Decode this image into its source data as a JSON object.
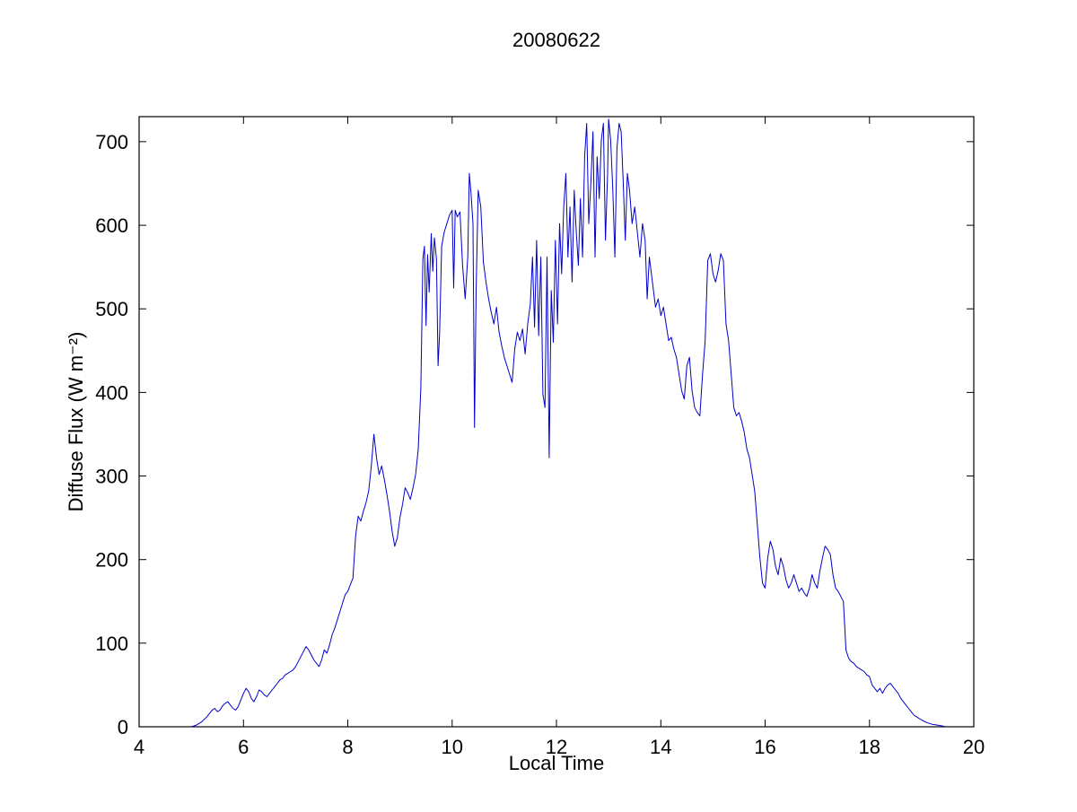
{
  "figure": {
    "background_color": "#ffffff",
    "frame_color": "#000000"
  },
  "chart_data": {
    "type": "line",
    "title": "20080622",
    "xlabel": "Local Time",
    "ylabel": "Diffuse Flux (W m⁻²)",
    "xlim": [
      4,
      20
    ],
    "ylim": [
      0,
      730
    ],
    "x_ticks": [
      4,
      6,
      8,
      10,
      12,
      14,
      16,
      18,
      20
    ],
    "y_ticks": [
      0,
      100,
      200,
      300,
      400,
      500,
      600,
      700
    ],
    "grid": false,
    "legend": "none",
    "line_color": "#0000CD",
    "line_width": 1,
    "points": [
      [
        5.0,
        0
      ],
      [
        5.05,
        1
      ],
      [
        5.1,
        2
      ],
      [
        5.2,
        6
      ],
      [
        5.3,
        12
      ],
      [
        5.35,
        16
      ],
      [
        5.4,
        20
      ],
      [
        5.45,
        22
      ],
      [
        5.5,
        18
      ],
      [
        5.55,
        20
      ],
      [
        5.6,
        25
      ],
      [
        5.65,
        28
      ],
      [
        5.7,
        30
      ],
      [
        5.75,
        26
      ],
      [
        5.8,
        22
      ],
      [
        5.85,
        20
      ],
      [
        5.9,
        24
      ],
      [
        5.95,
        32
      ],
      [
        6.0,
        40
      ],
      [
        6.05,
        46
      ],
      [
        6.1,
        42
      ],
      [
        6.15,
        34
      ],
      [
        6.2,
        30
      ],
      [
        6.25,
        36
      ],
      [
        6.3,
        44
      ],
      [
        6.35,
        42
      ],
      [
        6.4,
        38
      ],
      [
        6.45,
        36
      ],
      [
        6.5,
        40
      ],
      [
        6.55,
        44
      ],
      [
        6.6,
        48
      ],
      [
        6.65,
        52
      ],
      [
        6.7,
        56
      ],
      [
        6.75,
        58
      ],
      [
        6.8,
        62
      ],
      [
        6.85,
        64
      ],
      [
        6.9,
        66
      ],
      [
        6.95,
        68
      ],
      [
        7.0,
        72
      ],
      [
        7.05,
        78
      ],
      [
        7.1,
        84
      ],
      [
        7.15,
        90
      ],
      [
        7.2,
        96
      ],
      [
        7.25,
        92
      ],
      [
        7.3,
        86
      ],
      [
        7.35,
        80
      ],
      [
        7.4,
        76
      ],
      [
        7.45,
        72
      ],
      [
        7.5,
        80
      ],
      [
        7.55,
        92
      ],
      [
        7.6,
        88
      ],
      [
        7.65,
        98
      ],
      [
        7.7,
        110
      ],
      [
        7.75,
        118
      ],
      [
        7.8,
        128
      ],
      [
        7.85,
        138
      ],
      [
        7.9,
        148
      ],
      [
        7.95,
        158
      ],
      [
        8.0,
        162
      ],
      [
        8.05,
        170
      ],
      [
        8.1,
        178
      ],
      [
        8.15,
        228
      ],
      [
        8.2,
        252
      ],
      [
        8.25,
        246
      ],
      [
        8.3,
        258
      ],
      [
        8.35,
        268
      ],
      [
        8.4,
        282
      ],
      [
        8.45,
        312
      ],
      [
        8.5,
        350
      ],
      [
        8.55,
        322
      ],
      [
        8.6,
        302
      ],
      [
        8.65,
        312
      ],
      [
        8.7,
        296
      ],
      [
        8.75,
        278
      ],
      [
        8.8,
        258
      ],
      [
        8.85,
        234
      ],
      [
        8.9,
        216
      ],
      [
        8.95,
        226
      ],
      [
        9.0,
        250
      ],
      [
        9.05,
        266
      ],
      [
        9.1,
        286
      ],
      [
        9.15,
        280
      ],
      [
        9.2,
        272
      ],
      [
        9.25,
        286
      ],
      [
        9.3,
        302
      ],
      [
        9.35,
        332
      ],
      [
        9.4,
        405
      ],
      [
        9.44,
        560
      ],
      [
        9.47,
        575
      ],
      [
        9.5,
        480
      ],
      [
        9.53,
        565
      ],
      [
        9.56,
        520
      ],
      [
        9.6,
        590
      ],
      [
        9.63,
        545
      ],
      [
        9.66,
        585
      ],
      [
        9.7,
        560
      ],
      [
        9.73,
        432
      ],
      [
        9.76,
        470
      ],
      [
        9.8,
        575
      ],
      [
        9.85,
        592
      ],
      [
        9.9,
        602
      ],
      [
        9.95,
        612
      ],
      [
        10.0,
        618
      ],
      [
        10.03,
        525
      ],
      [
        10.06,
        618
      ],
      [
        10.1,
        610
      ],
      [
        10.15,
        616
      ],
      [
        10.2,
        552
      ],
      [
        10.25,
        512
      ],
      [
        10.3,
        562
      ],
      [
        10.33,
        662
      ],
      [
        10.36,
        640
      ],
      [
        10.4,
        602
      ],
      [
        10.43,
        358
      ],
      [
        10.46,
        522
      ],
      [
        10.5,
        642
      ],
      [
        10.55,
        622
      ],
      [
        10.6,
        556
      ],
      [
        10.65,
        532
      ],
      [
        10.7,
        512
      ],
      [
        10.75,
        496
      ],
      [
        10.8,
        482
      ],
      [
        10.85,
        502
      ],
      [
        10.9,
        472
      ],
      [
        10.95,
        456
      ],
      [
        11.0,
        442
      ],
      [
        11.05,
        432
      ],
      [
        11.1,
        422
      ],
      [
        11.15,
        412
      ],
      [
        11.2,
        452
      ],
      [
        11.25,
        472
      ],
      [
        11.3,
        462
      ],
      [
        11.35,
        476
      ],
      [
        11.4,
        446
      ],
      [
        11.45,
        482
      ],
      [
        11.5,
        506
      ],
      [
        11.54,
        562
      ],
      [
        11.58,
        478
      ],
      [
        11.62,
        582
      ],
      [
        11.66,
        468
      ],
      [
        11.7,
        562
      ],
      [
        11.74,
        398
      ],
      [
        11.78,
        382
      ],
      [
        11.82,
        562
      ],
      [
        11.86,
        322
      ],
      [
        11.9,
        522
      ],
      [
        11.94,
        460
      ],
      [
        11.98,
        582
      ],
      [
        12.02,
        482
      ],
      [
        12.06,
        602
      ],
      [
        12.1,
        542
      ],
      [
        12.14,
        622
      ],
      [
        12.18,
        662
      ],
      [
        12.22,
        562
      ],
      [
        12.26,
        622
      ],
      [
        12.3,
        532
      ],
      [
        12.34,
        642
      ],
      [
        12.38,
        592
      ],
      [
        12.42,
        552
      ],
      [
        12.46,
        632
      ],
      [
        12.5,
        562
      ],
      [
        12.54,
        682
      ],
      [
        12.58,
        722
      ],
      [
        12.62,
        602
      ],
      [
        12.66,
        652
      ],
      [
        12.7,
        712
      ],
      [
        12.74,
        562
      ],
      [
        12.78,
        682
      ],
      [
        12.82,
        632
      ],
      [
        12.86,
        702
      ],
      [
        12.9,
        722
      ],
      [
        12.94,
        582
      ],
      [
        12.98,
        662
      ],
      [
        13.0,
        727
      ],
      [
        13.04,
        702
      ],
      [
        13.08,
        642
      ],
      [
        13.12,
        562
      ],
      [
        13.16,
        692
      ],
      [
        13.2,
        722
      ],
      [
        13.24,
        712
      ],
      [
        13.28,
        652
      ],
      [
        13.32,
        582
      ],
      [
        13.36,
        662
      ],
      [
        13.4,
        642
      ],
      [
        13.45,
        602
      ],
      [
        13.5,
        622
      ],
      [
        13.55,
        592
      ],
      [
        13.6,
        562
      ],
      [
        13.65,
        602
      ],
      [
        13.7,
        582
      ],
      [
        13.74,
        512
      ],
      [
        13.78,
        562
      ],
      [
        13.82,
        542
      ],
      [
        13.86,
        522
      ],
      [
        13.9,
        502
      ],
      [
        13.95,
        512
      ],
      [
        14.0,
        492
      ],
      [
        14.05,
        502
      ],
      [
        14.1,
        482
      ],
      [
        14.15,
        462
      ],
      [
        14.2,
        466
      ],
      [
        14.25,
        452
      ],
      [
        14.3,
        442
      ],
      [
        14.35,
        422
      ],
      [
        14.4,
        402
      ],
      [
        14.45,
        392
      ],
      [
        14.5,
        432
      ],
      [
        14.55,
        442
      ],
      [
        14.6,
        402
      ],
      [
        14.65,
        382
      ],
      [
        14.7,
        376
      ],
      [
        14.75,
        372
      ],
      [
        14.8,
        422
      ],
      [
        14.85,
        462
      ],
      [
        14.9,
        558
      ],
      [
        14.95,
        566
      ],
      [
        15.0,
        542
      ],
      [
        15.05,
        532
      ],
      [
        15.1,
        546
      ],
      [
        15.15,
        566
      ],
      [
        15.2,
        558
      ],
      [
        15.25,
        482
      ],
      [
        15.3,
        462
      ],
      [
        15.35,
        422
      ],
      [
        15.4,
        382
      ],
      [
        15.45,
        372
      ],
      [
        15.5,
        376
      ],
      [
        15.55,
        366
      ],
      [
        15.6,
        352
      ],
      [
        15.65,
        332
      ],
      [
        15.7,
        322
      ],
      [
        15.75,
        302
      ],
      [
        15.8,
        282
      ],
      [
        15.85,
        242
      ],
      [
        15.9,
        202
      ],
      [
        15.95,
        172
      ],
      [
        16.0,
        166
      ],
      [
        16.05,
        202
      ],
      [
        16.1,
        222
      ],
      [
        16.15,
        212
      ],
      [
        16.2,
        192
      ],
      [
        16.25,
        182
      ],
      [
        16.3,
        202
      ],
      [
        16.35,
        192
      ],
      [
        16.4,
        176
      ],
      [
        16.45,
        166
      ],
      [
        16.5,
        172
      ],
      [
        16.55,
        182
      ],
      [
        16.6,
        172
      ],
      [
        16.65,
        162
      ],
      [
        16.7,
        166
      ],
      [
        16.75,
        160
      ],
      [
        16.8,
        156
      ],
      [
        16.85,
        166
      ],
      [
        16.9,
        182
      ],
      [
        16.95,
        172
      ],
      [
        17.0,
        166
      ],
      [
        17.05,
        186
      ],
      [
        17.1,
        202
      ],
      [
        17.15,
        216
      ],
      [
        17.2,
        212
      ],
      [
        17.25,
        206
      ],
      [
        17.3,
        182
      ],
      [
        17.35,
        166
      ],
      [
        17.4,
        162
      ],
      [
        17.45,
        156
      ],
      [
        17.5,
        150
      ],
      [
        17.55,
        92
      ],
      [
        17.6,
        82
      ],
      [
        17.65,
        78
      ],
      [
        17.7,
        76
      ],
      [
        17.75,
        72
      ],
      [
        17.8,
        70
      ],
      [
        17.85,
        68
      ],
      [
        17.9,
        66
      ],
      [
        17.95,
        62
      ],
      [
        18.0,
        60
      ],
      [
        18.05,
        50
      ],
      [
        18.1,
        46
      ],
      [
        18.15,
        42
      ],
      [
        18.2,
        46
      ],
      [
        18.25,
        40
      ],
      [
        18.3,
        46
      ],
      [
        18.35,
        50
      ],
      [
        18.4,
        52
      ],
      [
        18.45,
        48
      ],
      [
        18.5,
        44
      ],
      [
        18.55,
        40
      ],
      [
        18.6,
        34
      ],
      [
        18.65,
        30
      ],
      [
        18.7,
        26
      ],
      [
        18.75,
        22
      ],
      [
        18.8,
        18
      ],
      [
        18.85,
        14
      ],
      [
        18.9,
        12
      ],
      [
        18.95,
        10
      ],
      [
        19.0,
        8
      ],
      [
        19.1,
        5
      ],
      [
        19.2,
        3
      ],
      [
        19.3,
        2
      ],
      [
        19.4,
        1
      ],
      [
        19.45,
        0
      ]
    ]
  }
}
